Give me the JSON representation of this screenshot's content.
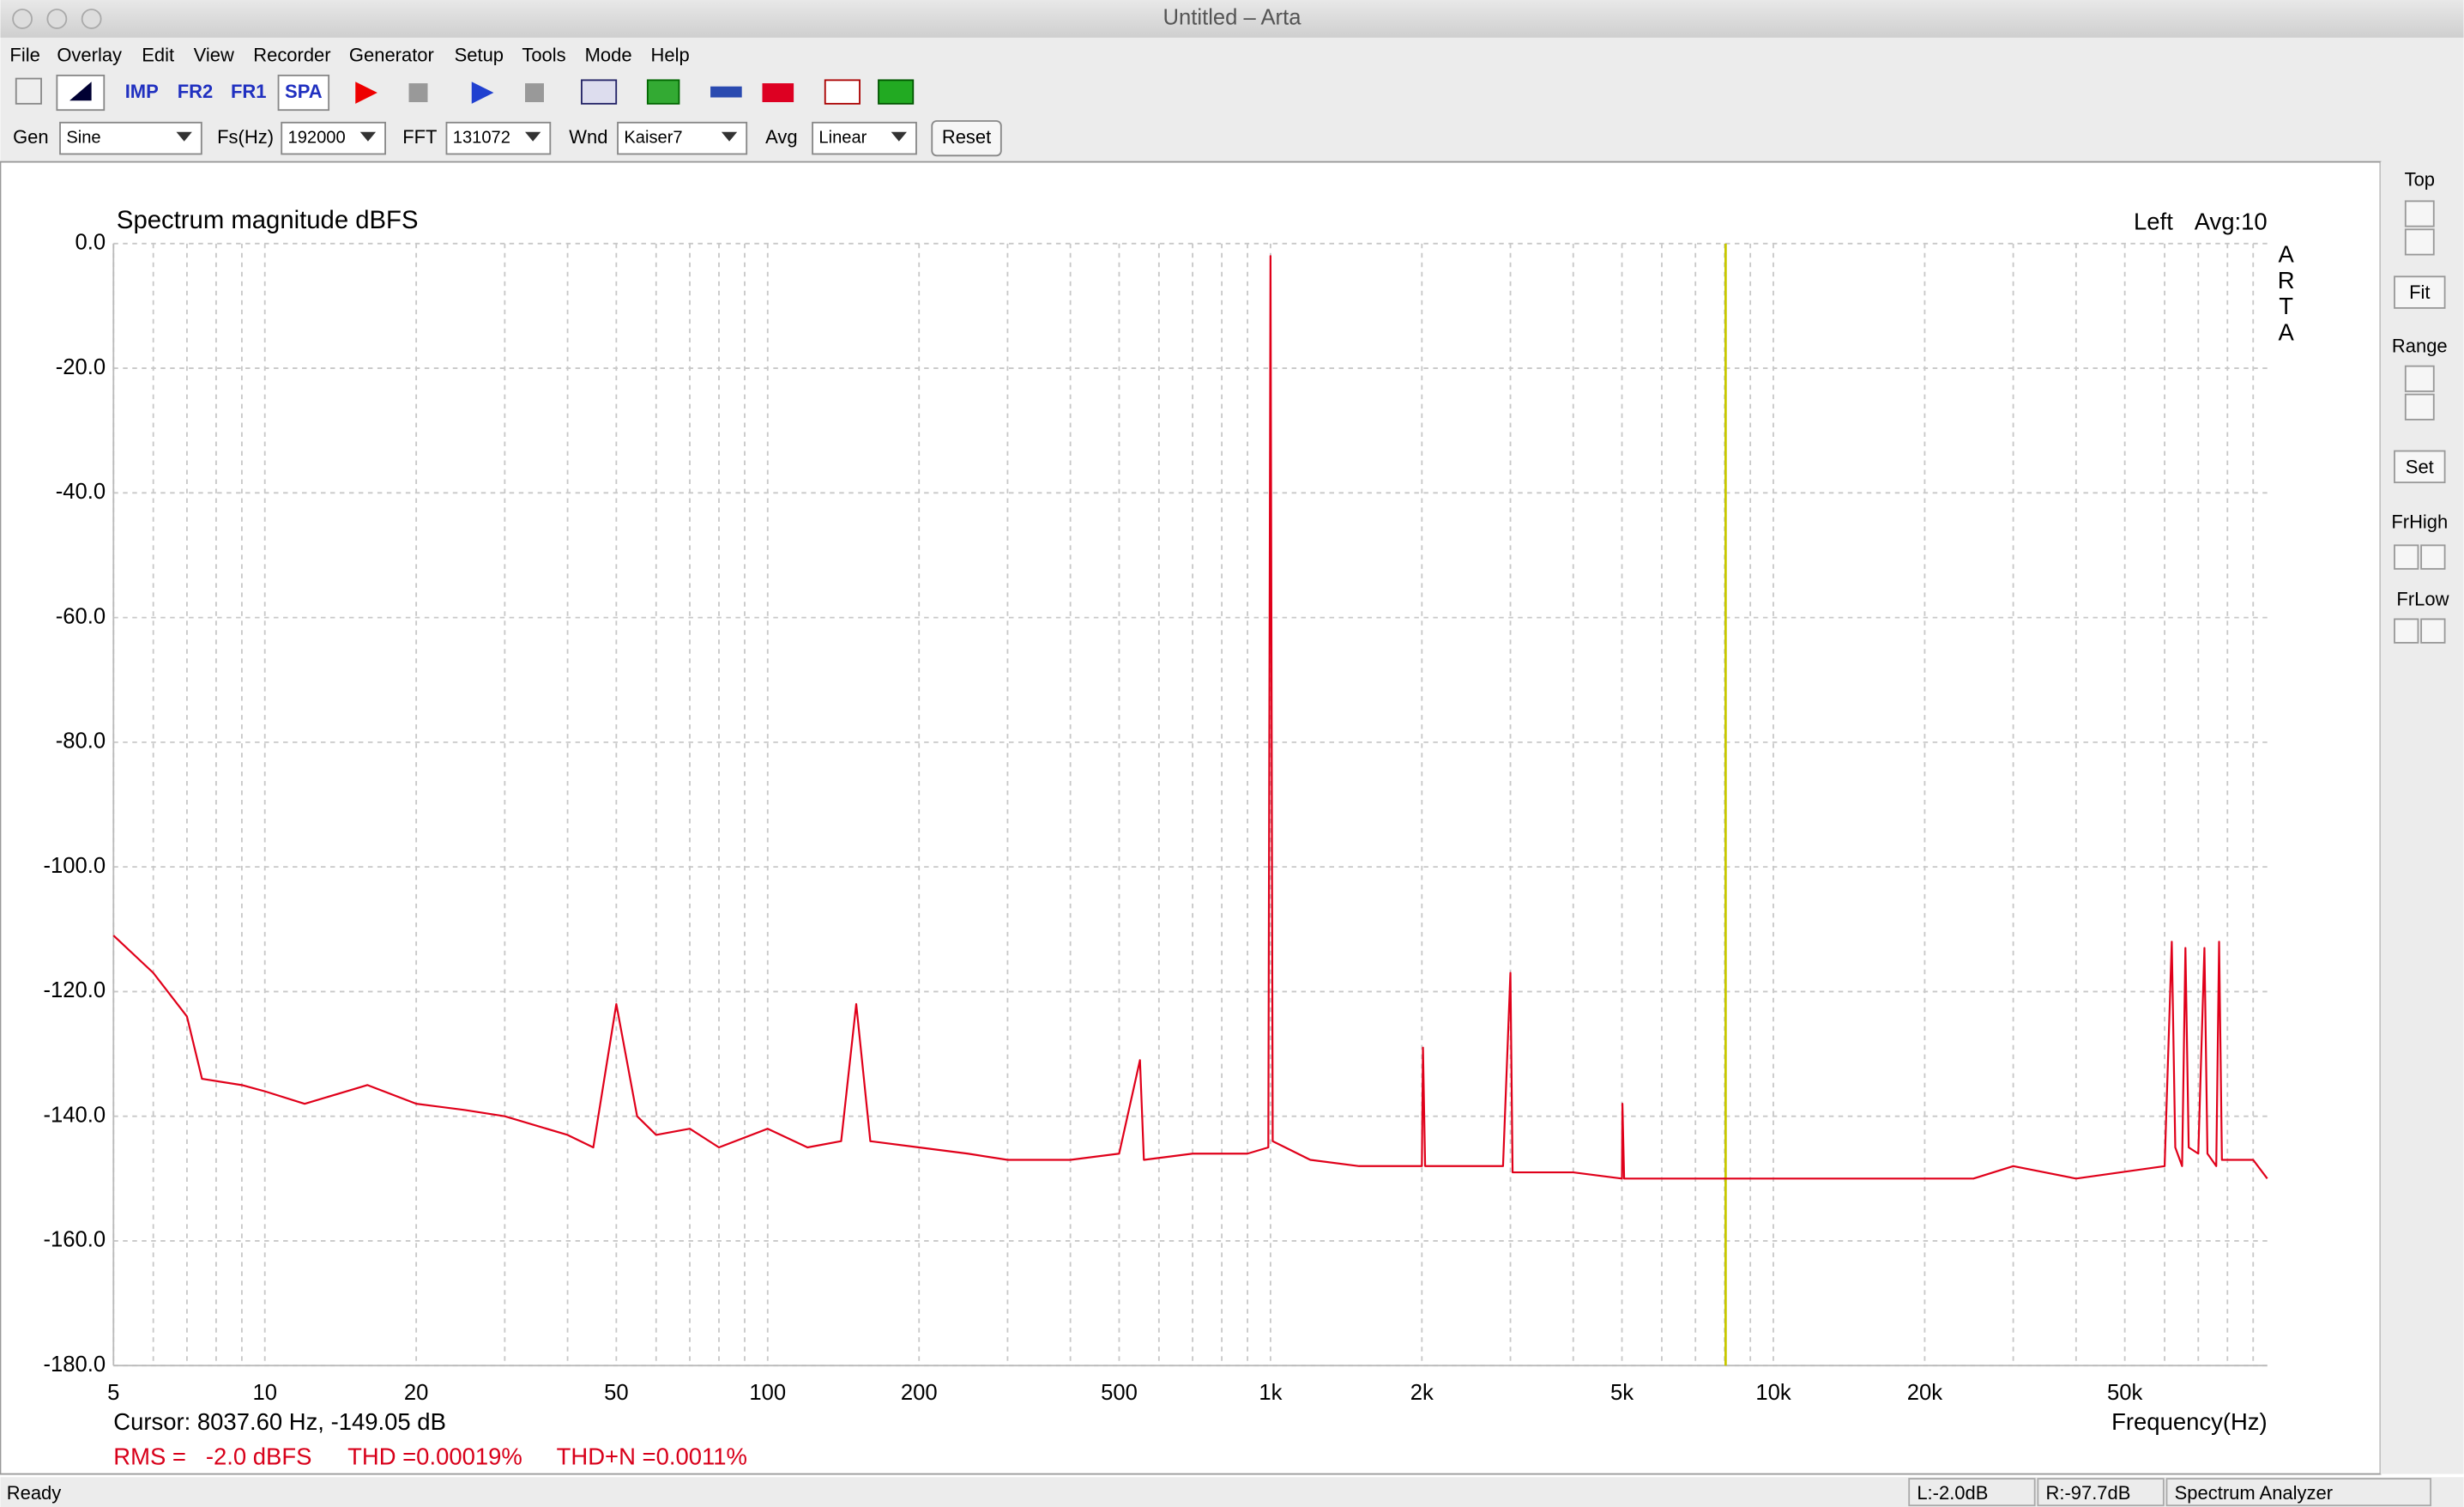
{
  "window": {
    "title": "Untitled – Arta"
  },
  "menu": [
    "File",
    "Overlay",
    "Edit",
    "View",
    "Recorder",
    "Generator",
    "Setup",
    "Tools",
    "Mode",
    "Help"
  ],
  "toolbar": {
    "buttons": [
      "IMP",
      "FR2",
      "FR1",
      "SPA"
    ]
  },
  "controls": {
    "gen_label": "Gen",
    "gen": "Sine",
    "fs_label": "Fs(Hz)",
    "fs": "192000",
    "fft_label": "FFT",
    "fft": "131072",
    "wnd_label": "Wnd",
    "wnd": "Kaiser7",
    "avg_label": "Avg",
    "avg": "Linear",
    "reset": "Reset"
  },
  "side_panel": {
    "top": "Top",
    "fit": "Fit",
    "range": "Range",
    "set": "Set",
    "frhigh": "FrHigh",
    "frlow": "FrLow"
  },
  "status_bar": [
    "Ready",
    "L:-2.0dB",
    "R:-97.7dB",
    "Spectrum Analyzer"
  ],
  "chart_data": {
    "type": "line",
    "title": "Spectrum magnitude dBFS",
    "channel": "Left",
    "avg": "Avg:10",
    "watermark": [
      "A",
      "R",
      "T",
      "A"
    ],
    "xlabel": "Frequency(Hz)",
    "log_x": true,
    "grid": true,
    "cursor": {
      "text": "Cursor: 8037.60 Hz, -149.05 dB",
      "x": 8037.6,
      "color": "#c8c800"
    },
    "stats": [
      "RMS =   -2.0 dBFS",
      "THD =0.00019%",
      "THD+N =0.0011%"
    ],
    "xlim": [
      5,
      96000
    ],
    "ylim": [
      -180,
      0
    ],
    "xticks": [
      5,
      10,
      20,
      50,
      100,
      200,
      500,
      {
        "value": 1000,
        "label": "1k"
      },
      {
        "value": 2000,
        "label": "2k"
      },
      {
        "value": 5000,
        "label": "5k"
      },
      {
        "value": 10000,
        "label": "10k"
      },
      {
        "value": 20000,
        "label": "20k"
      },
      {
        "value": 50000,
        "label": "50k"
      }
    ],
    "xminor": [
      6,
      7,
      8,
      9,
      30,
      40,
      60,
      70,
      80,
      90,
      300,
      400,
      600,
      700,
      800,
      900,
      3000,
      4000,
      6000,
      7000,
      8000,
      9000,
      30000,
      40000,
      60000,
      70000,
      80000,
      90000
    ],
    "yticks": [
      {
        "value": 0,
        "label": "0.0"
      },
      {
        "value": -20,
        "label": "-20.0"
      },
      {
        "value": -40,
        "label": "-40.0"
      },
      {
        "value": -60,
        "label": "-60.0"
      },
      {
        "value": -80,
        "label": "-80.0"
      },
      {
        "value": -100,
        "label": "-100.0"
      },
      {
        "value": -120,
        "label": "-120.0"
      },
      {
        "value": -140,
        "label": "-140.0"
      },
      {
        "value": -160,
        "label": "-160.0"
      },
      {
        "value": -180,
        "label": "-180.0"
      }
    ],
    "series": [
      {
        "name": "Left",
        "color": "#e0001a",
        "x": [
          5,
          6,
          7,
          7.5,
          9,
          10,
          12,
          16,
          20,
          25,
          30,
          40,
          45,
          50,
          55,
          60,
          70,
          80,
          100,
          120,
          140,
          150,
          160,
          200,
          250,
          300,
          400,
          500,
          550,
          560,
          700,
          900,
          990,
          1000,
          1010,
          1200,
          1500,
          2000,
          2010,
          2030,
          2900,
          3000,
          3030,
          4000,
          5000,
          5010,
          5050,
          8000,
          10000,
          15000,
          20000,
          25000,
          30000,
          40000,
          60000,
          62000,
          63000,
          65000,
          66000,
          67000,
          70000,
          72000,
          73000,
          76000,
          77000,
          78000,
          90000,
          96000
        ],
        "values": [
          -111,
          -117,
          -124,
          -134,
          -135,
          -136,
          -138,
          -135,
          -138,
          -139,
          -140,
          -143,
          -145,
          -122,
          -140,
          -143,
          -142,
          -145,
          -142,
          -145,
          -144,
          -122,
          -144,
          -145,
          -146,
          -147,
          -147,
          -146,
          -131,
          -147,
          -146,
          -146,
          -145,
          -2,
          -144,
          -147,
          -148,
          -148,
          -129,
          -148,
          -148,
          -117,
          -149,
          -149,
          -150,
          -138,
          -150,
          -150,
          -150,
          -150,
          -150,
          -150,
          -148,
          -150,
          -148,
          -112,
          -145,
          -148,
          -113,
          -145,
          -146,
          -113,
          -146,
          -148,
          -112,
          -147,
          -147,
          -150
        ]
      }
    ]
  }
}
